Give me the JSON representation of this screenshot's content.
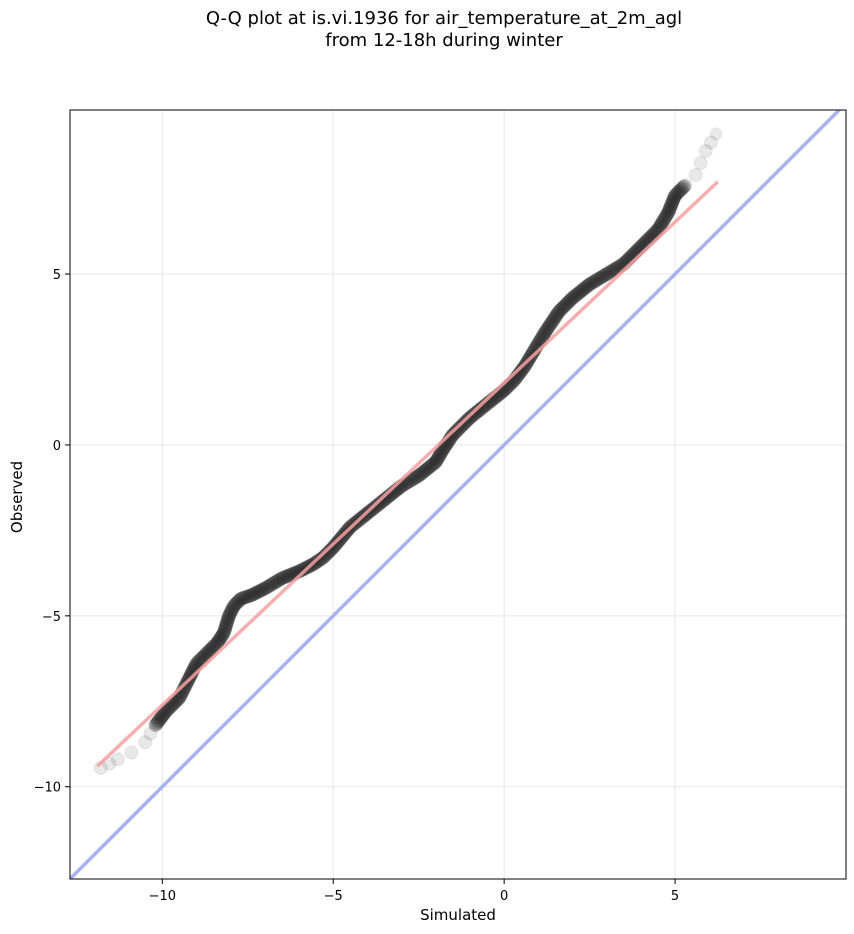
{
  "title_lines": [
    "Q-Q plot at is.vi.1936 for air_temperature_at_2m_agl",
    "from 12-18h during winter"
  ],
  "chart_data": {
    "type": "scatter",
    "title": "Q-Q plot at is.vi.1936 for air_temperature_at_2m_agl\nfrom 12-18h during winter",
    "xlabel": "Simulated",
    "ylabel": "Observed",
    "xlim": [
      -12.7,
      10.0
    ],
    "ylim": [
      -12.7,
      9.8
    ],
    "xticks": [
      -10,
      -5,
      0,
      5
    ],
    "yticks": [
      -10,
      -5,
      0,
      5
    ],
    "xtick_labels": [
      "−10",
      "−5",
      "0",
      "5"
    ],
    "ytick_labels": [
      "−10",
      "−5",
      "0",
      "5"
    ],
    "grid": true,
    "quantile_curve": {
      "x": [
        -11.8,
        -11.3,
        -10.9,
        -10.5,
        -10.2,
        -9.9,
        -9.5,
        -9.2,
        -9.0,
        -8.7,
        -8.4,
        -8.2,
        -8.05,
        -7.9,
        -7.7,
        -7.4,
        -7.0,
        -6.5,
        -6.0,
        -5.6,
        -5.3,
        -5.0,
        -4.5,
        -4.0,
        -3.5,
        -3.0,
        -2.5,
        -2.0,
        -1.8,
        -1.5,
        -1.0,
        -0.5,
        0.0,
        0.3,
        0.6,
        0.9,
        1.2,
        1.6,
        2.0,
        2.5,
        3.0,
        3.5,
        4.0,
        4.5,
        4.8,
        5.0,
        5.3,
        5.6,
        5.9,
        6.2
      ],
      "y": [
        -9.45,
        -9.2,
        -9.0,
        -8.7,
        -8.2,
        -7.8,
        -7.4,
        -6.8,
        -6.4,
        -6.1,
        -5.8,
        -5.5,
        -5.0,
        -4.7,
        -4.5,
        -4.4,
        -4.2,
        -3.9,
        -3.7,
        -3.5,
        -3.3,
        -3.0,
        -2.4,
        -2.0,
        -1.6,
        -1.2,
        -0.9,
        -0.5,
        -0.15,
        0.3,
        0.8,
        1.2,
        1.6,
        1.9,
        2.3,
        2.8,
        3.3,
        3.9,
        4.3,
        4.7,
        5.0,
        5.3,
        5.8,
        6.3,
        6.8,
        7.3,
        7.6,
        7.9,
        8.6,
        9.1
      ]
    },
    "fit_line": {
      "x": [
        -11.9,
        6.25
      ],
      "y": [
        -9.4,
        7.7
      ],
      "color": "#f4a0a0"
    },
    "identity_line": {
      "color": "#aab0f0"
    },
    "point_color": "#1a1a1a"
  }
}
